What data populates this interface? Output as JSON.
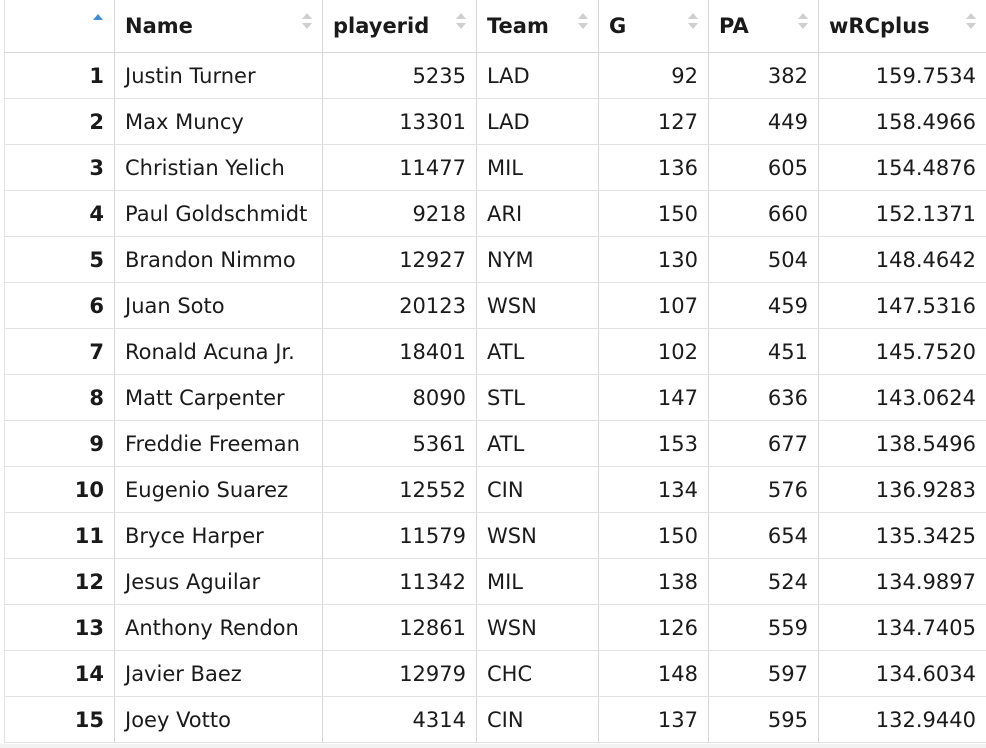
{
  "table": {
    "columns": [
      {
        "key": "idx",
        "label": ""
      },
      {
        "key": "name",
        "label": "Name"
      },
      {
        "key": "playerid",
        "label": "playerid"
      },
      {
        "key": "team",
        "label": "Team"
      },
      {
        "key": "g",
        "label": "G"
      },
      {
        "key": "pa",
        "label": "PA"
      },
      {
        "key": "wrcplus",
        "label": "wRCplus"
      }
    ],
    "rows": [
      {
        "idx": "1",
        "name": "Justin Turner",
        "playerid": "5235",
        "team": "LAD",
        "g": "92",
        "pa": "382",
        "wrcplus": "159.7534"
      },
      {
        "idx": "2",
        "name": "Max Muncy",
        "playerid": "13301",
        "team": "LAD",
        "g": "127",
        "pa": "449",
        "wrcplus": "158.4966"
      },
      {
        "idx": "3",
        "name": "Christian Yelich",
        "playerid": "11477",
        "team": "MIL",
        "g": "136",
        "pa": "605",
        "wrcplus": "154.4876"
      },
      {
        "idx": "4",
        "name": "Paul Goldschmidt",
        "playerid": "9218",
        "team": "ARI",
        "g": "150",
        "pa": "660",
        "wrcplus": "152.1371"
      },
      {
        "idx": "5",
        "name": "Brandon Nimmo",
        "playerid": "12927",
        "team": "NYM",
        "g": "130",
        "pa": "504",
        "wrcplus": "148.4642"
      },
      {
        "idx": "6",
        "name": "Juan Soto",
        "playerid": "20123",
        "team": "WSN",
        "g": "107",
        "pa": "459",
        "wrcplus": "147.5316"
      },
      {
        "idx": "7",
        "name": "Ronald Acuna Jr.",
        "playerid": "18401",
        "team": "ATL",
        "g": "102",
        "pa": "451",
        "wrcplus": "145.7520"
      },
      {
        "idx": "8",
        "name": "Matt Carpenter",
        "playerid": "8090",
        "team": "STL",
        "g": "147",
        "pa": "636",
        "wrcplus": "143.0624"
      },
      {
        "idx": "9",
        "name": "Freddie Freeman",
        "playerid": "5361",
        "team": "ATL",
        "g": "153",
        "pa": "677",
        "wrcplus": "138.5496"
      },
      {
        "idx": "10",
        "name": "Eugenio Suarez",
        "playerid": "12552",
        "team": "CIN",
        "g": "134",
        "pa": "576",
        "wrcplus": "136.9283"
      },
      {
        "idx": "11",
        "name": "Bryce Harper",
        "playerid": "11579",
        "team": "WSN",
        "g": "150",
        "pa": "654",
        "wrcplus": "135.3425"
      },
      {
        "idx": "12",
        "name": "Jesus Aguilar",
        "playerid": "11342",
        "team": "MIL",
        "g": "138",
        "pa": "524",
        "wrcplus": "134.9897"
      },
      {
        "idx": "13",
        "name": "Anthony Rendon",
        "playerid": "12861",
        "team": "WSN",
        "g": "126",
        "pa": "559",
        "wrcplus": "134.7405"
      },
      {
        "idx": "14",
        "name": "Javier Baez",
        "playerid": "12979",
        "team": "CHC",
        "g": "148",
        "pa": "597",
        "wrcplus": "134.6034"
      },
      {
        "idx": "15",
        "name": "Joey Votto",
        "playerid": "4314",
        "team": "CIN",
        "g": "137",
        "pa": "595",
        "wrcplus": "132.9440"
      }
    ],
    "sort": {
      "active_column": "idx",
      "direction": "ascending"
    },
    "colors": {
      "active_sort_arrow": "#3f8fd8",
      "inactive_sort_arrow": "#cfcfcf",
      "grid_line": "#d6d6d6"
    }
  }
}
